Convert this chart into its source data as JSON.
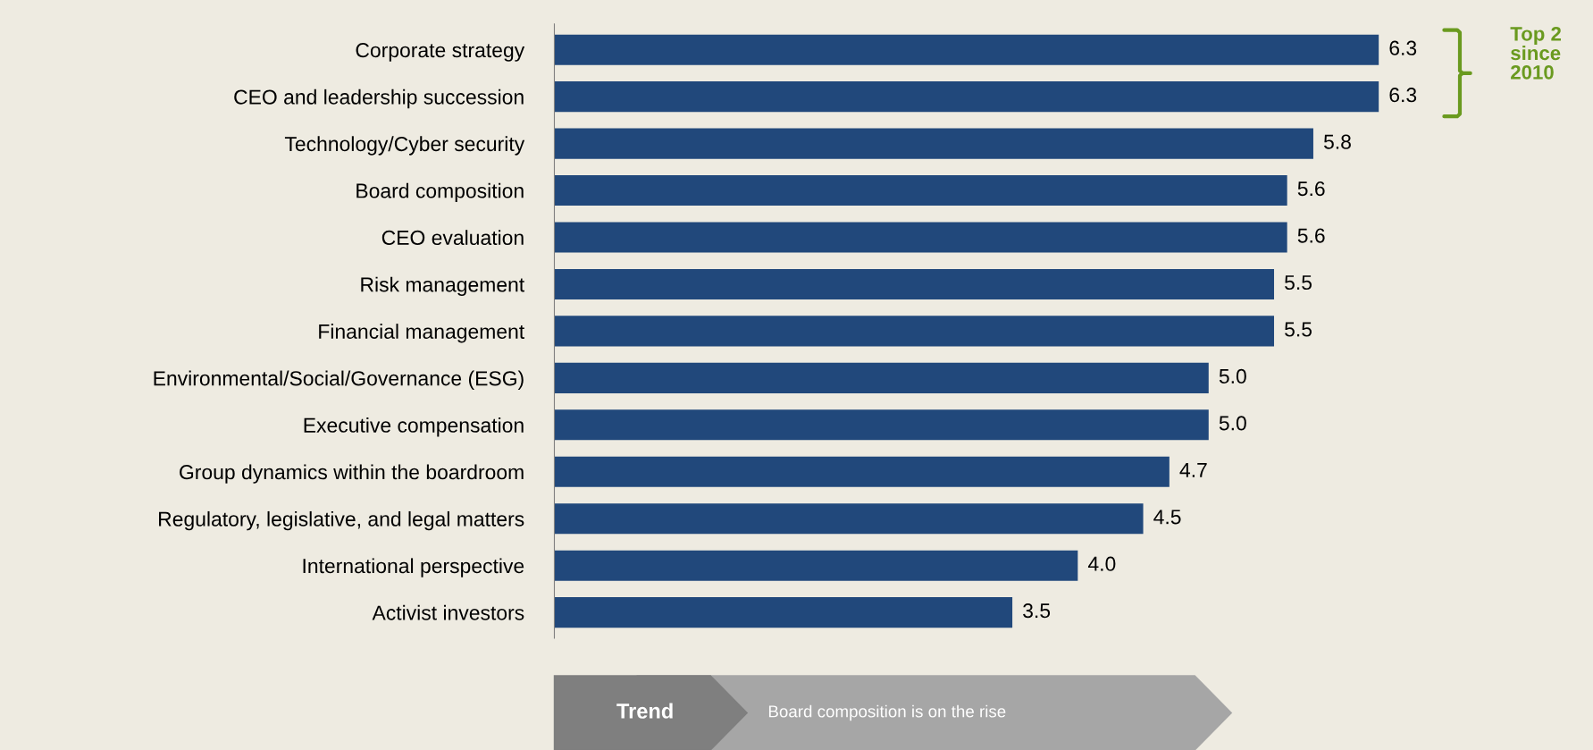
{
  "chart_data": {
    "type": "bar",
    "orientation": "horizontal",
    "categories": [
      "Corporate strategy",
      "CEO and leadership succession",
      "Technology/Cyber security",
      "Board composition",
      "CEO evaluation",
      "Risk management",
      "Financial management",
      "Environmental/Social/Governance (ESG)",
      "Executive compensation",
      "Group dynamics within the boardroom",
      "Regulatory, legislative, and legal matters",
      "International perspective",
      "Activist investors"
    ],
    "values": [
      6.3,
      6.3,
      5.8,
      5.6,
      5.6,
      5.5,
      5.5,
      5.0,
      5.0,
      4.7,
      4.5,
      4.0,
      3.5
    ],
    "value_labels": [
      "6.3",
      "6.3",
      "5.8",
      "5.6",
      "5.6",
      "5.5",
      "5.5",
      "5.0",
      "5.0",
      "4.7",
      "4.5",
      "4.0",
      "3.5"
    ],
    "color": "#21487b",
    "tick_labels": "y",
    "grid": false,
    "legend": false,
    "annotations": [
      "Top 2\nsince\n2010",
      "Trend",
      "Board composition is on the rise"
    ]
  }
}
